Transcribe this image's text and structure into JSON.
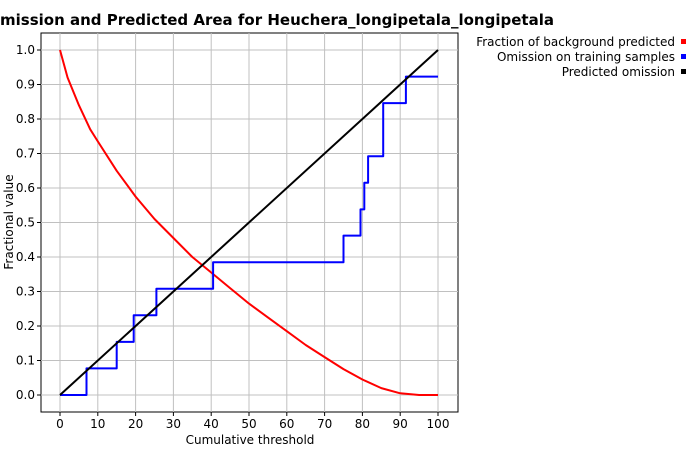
{
  "chart_data": {
    "type": "line",
    "title": "mission and Predicted Area for Heuchera_longipetala_longipetala",
    "xlabel": "Cumulative threshold",
    "ylabel": "Fractional value",
    "xlim": [
      0,
      100
    ],
    "ylim": [
      0,
      1.0
    ],
    "xticks": [
      0,
      10,
      20,
      30,
      40,
      50,
      60,
      70,
      80,
      90,
      100
    ],
    "yticks": [
      0.0,
      0.1,
      0.2,
      0.3,
      0.4,
      0.5,
      0.6,
      0.7,
      0.8,
      0.9,
      1.0
    ],
    "xtick_labels": [
      "0",
      "10",
      "20",
      "30",
      "40",
      "50",
      "60",
      "70",
      "80",
      "90",
      "100"
    ],
    "ytick_labels": [
      "0.0",
      "0.1",
      "0.2",
      "0.3",
      "0.4",
      "0.5",
      "0.6",
      "0.7",
      "0.8",
      "0.9",
      "1.0"
    ],
    "grid": true,
    "legend_position": "top-right-outside",
    "series": [
      {
        "name": "Fraction of background predicted",
        "color": "#ff0000",
        "x": [
          0,
          2,
          5,
          8,
          10,
          15,
          20,
          25,
          30,
          35,
          40,
          45,
          50,
          55,
          60,
          65,
          70,
          75,
          80,
          85,
          90,
          95,
          100
        ],
        "y": [
          1.0,
          0.92,
          0.84,
          0.77,
          0.735,
          0.65,
          0.575,
          0.51,
          0.455,
          0.4,
          0.355,
          0.31,
          0.265,
          0.225,
          0.185,
          0.145,
          0.11,
          0.075,
          0.045,
          0.02,
          0.005,
          0.0,
          0.0
        ]
      },
      {
        "name": "Omission on training samples",
        "color": "#0000ff",
        "x": [
          0,
          7,
          7,
          15,
          15,
          19.5,
          19.5,
          25.5,
          25.5,
          40.5,
          40.5,
          75,
          75,
          79.5,
          79.5,
          80.5,
          80.5,
          81.5,
          81.5,
          85.5,
          85.5,
          91.5,
          91.5,
          100
        ],
        "y": [
          0.0,
          0.0,
          0.077,
          0.077,
          0.154,
          0.154,
          0.231,
          0.231,
          0.308,
          0.308,
          0.385,
          0.385,
          0.462,
          0.462,
          0.538,
          0.538,
          0.615,
          0.615,
          0.692,
          0.692,
          0.846,
          0.846,
          0.923,
          0.923
        ]
      },
      {
        "name": "Predicted omission",
        "color": "#000000",
        "x": [
          0,
          100
        ],
        "y": [
          0.0,
          1.0
        ]
      }
    ]
  }
}
